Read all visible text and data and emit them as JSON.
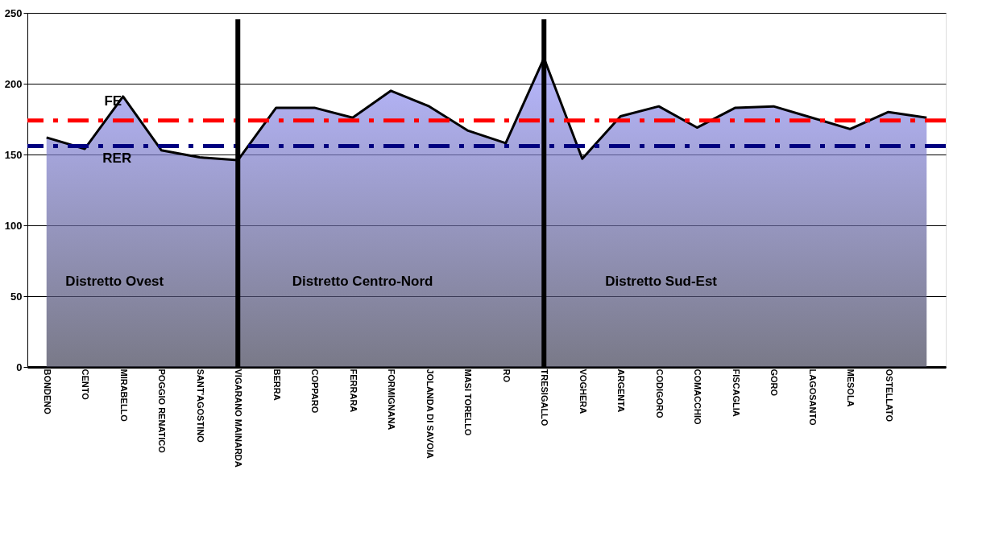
{
  "chart_data": {
    "type": "area",
    "categories": [
      "BONDENO",
      "CENTO",
      "MIRABELLO",
      "POGGIO RENATICO",
      "SANT'AGOSTINO",
      "VIGARANO MAINARDA",
      "BERRA",
      "COPPARO",
      "FERRARA",
      "FORMIGNANA",
      "JOLANDA DI SAVOIA",
      "MASI TORELLO",
      "RO",
      "TRESIGALLO",
      "VOGHERA",
      "ARGENTA",
      "CODIGORO",
      "COMACCHIO",
      "FISCAGLIA",
      "GORO",
      "LAGOSANTO",
      "MESOLA",
      "OSTELLATO",
      null
    ],
    "series": [
      {
        "color": "#9999ff",
        "values": [
          162,
          154,
          191,
          153,
          148,
          146,
          183,
          183,
          176,
          195,
          184,
          167,
          158,
          218,
          147,
          177,
          184,
          169,
          183,
          184,
          176,
          168,
          180,
          176
        ]
      }
    ],
    "ylim": [
      0,
      250
    ],
    "yticks": [
      0,
      50,
      100,
      150,
      200,
      250
    ],
    "grid": "y",
    "ref_lines": [
      {
        "axis": "y",
        "value": 174,
        "label": "FE",
        "color": "#ff0000",
        "line_style": "dashdot"
      },
      {
        "axis": "y",
        "value": 156,
        "label": "RER",
        "color": "#000080",
        "line_style": "dashdot"
      },
      {
        "axis": "x",
        "value": "VIGARANO MAINARDA",
        "label": null,
        "color": "#000000"
      },
      {
        "axis": "x",
        "value": "TRESIGALLO",
        "label": null,
        "color": "#000000"
      }
    ],
    "annotations": [
      "Distretto Ovest",
      "Distretto Centro-Nord",
      "Distretto Sud-Est"
    ]
  }
}
